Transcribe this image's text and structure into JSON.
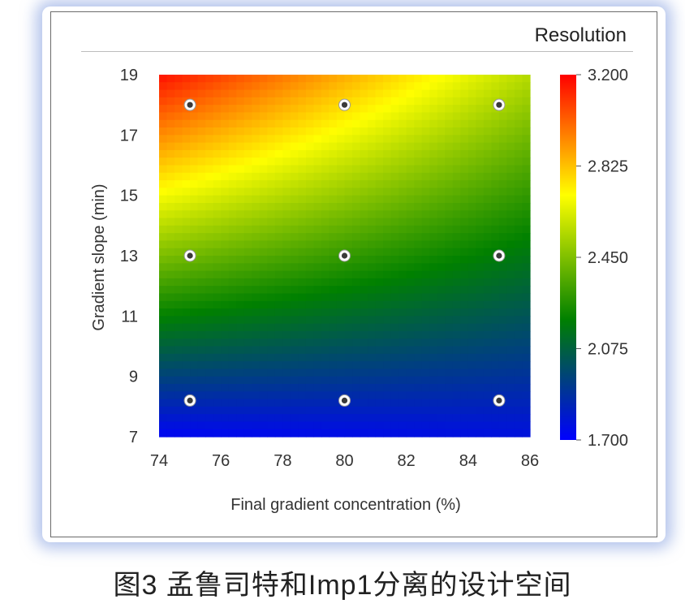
{
  "chart_data": {
    "type": "heatmap",
    "title": "Resolution",
    "xlabel": "Final gradient concentration (%)",
    "ylabel": "Gradient slope (min)",
    "xlim": [
      74,
      86
    ],
    "ylim": [
      7,
      19
    ],
    "x_ticks": [
      74,
      76,
      78,
      80,
      82,
      84,
      86
    ],
    "y_ticks": [
      7,
      9,
      11,
      13,
      15,
      17,
      19
    ],
    "colorbar": {
      "min": 1.7,
      "max": 3.2,
      "ticks": [
        "3.200",
        "2.825",
        "2.450",
        "2.075",
        "1.700"
      ],
      "colors": [
        "#ff0000",
        "#ffff00",
        "#008000",
        "#0000ff"
      ]
    },
    "design_points": [
      {
        "x": 75,
        "y": 18
      },
      {
        "x": 80,
        "y": 18
      },
      {
        "x": 85,
        "y": 18
      },
      {
        "x": 75,
        "y": 13
      },
      {
        "x": 80,
        "y": 13
      },
      {
        "x": 85,
        "y": 13
      },
      {
        "x": 75,
        "y": 8.2
      },
      {
        "x": 80,
        "y": 8.2
      },
      {
        "x": 85,
        "y": 8.2
      }
    ],
    "grid": false,
    "legend": "colorbar-right"
  },
  "caption": "图3 孟鲁司特和Imp1分离的设计空间"
}
